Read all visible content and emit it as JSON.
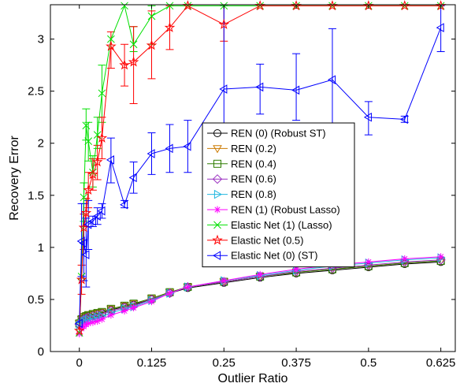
{
  "chart_data": {
    "type": "line",
    "xlabel": "Outlier Ratio",
    "ylabel": "Recovery Error",
    "xlim": [
      -0.05,
      0.65
    ],
    "ylim": [
      0,
      3.33
    ],
    "xticks": [
      0,
      0.125,
      0.25,
      0.375,
      0.5,
      0.625
    ],
    "xtick_labels": [
      "0",
      "0.125",
      "0.25",
      "0.375",
      "0.5",
      "0.625"
    ],
    "yticks": [
      0,
      0.5,
      1,
      1.5,
      2,
      2.5,
      3
    ],
    "ytick_labels": [
      "0",
      "0.5",
      "1",
      "1.5",
      "2",
      "2.5",
      "3"
    ],
    "grid": false,
    "legend_position": "center",
    "x": [
      0,
      0.0039,
      0.0078,
      0.0117,
      0.0156,
      0.0234,
      0.0313,
      0.0391,
      0.0547,
      0.0781,
      0.0938,
      0.125,
      0.1563,
      0.1875,
      0.25,
      0.3125,
      0.375,
      0.4375,
      0.5,
      0.5625,
      0.625
    ],
    "series": [
      {
        "name": "REN (0) (Robust ST)",
        "color": "#000000",
        "marker": "circle",
        "values": [
          0.26,
          0.3,
          0.32,
          0.33,
          0.34,
          0.35,
          0.36,
          0.37,
          0.4,
          0.43,
          0.45,
          0.5,
          0.56,
          0.61,
          0.66,
          0.71,
          0.75,
          0.78,
          0.81,
          0.84,
          0.86
        ]
      },
      {
        "name": "REN (0.2)",
        "color": "#cc7a00",
        "marker": "triangle-down",
        "values": [
          0.27,
          0.31,
          0.33,
          0.34,
          0.35,
          0.36,
          0.37,
          0.38,
          0.41,
          0.44,
          0.46,
          0.51,
          0.57,
          0.62,
          0.67,
          0.72,
          0.76,
          0.79,
          0.82,
          0.85,
          0.87
        ]
      },
      {
        "name": "REN (0.4)",
        "color": "#2e7d00",
        "marker": "square",
        "values": [
          0.27,
          0.31,
          0.33,
          0.34,
          0.35,
          0.36,
          0.37,
          0.38,
          0.41,
          0.44,
          0.46,
          0.51,
          0.57,
          0.62,
          0.67,
          0.72,
          0.76,
          0.79,
          0.82,
          0.85,
          0.87
        ]
      },
      {
        "name": "REN (0.6)",
        "color": "#9a2fc0",
        "marker": "diamond",
        "values": [
          0.26,
          0.29,
          0.31,
          0.32,
          0.33,
          0.34,
          0.35,
          0.36,
          0.39,
          0.42,
          0.44,
          0.5,
          0.56,
          0.62,
          0.67,
          0.72,
          0.77,
          0.8,
          0.83,
          0.86,
          0.88
        ]
      },
      {
        "name": "REN (0.8)",
        "color": "#22b7e0",
        "marker": "triangle-right",
        "values": [
          0.25,
          0.27,
          0.29,
          0.3,
          0.31,
          0.32,
          0.33,
          0.34,
          0.37,
          0.41,
          0.43,
          0.49,
          0.56,
          0.62,
          0.68,
          0.73,
          0.78,
          0.82,
          0.85,
          0.88,
          0.9
        ]
      },
      {
        "name": "REN (1) (Robust Lasso)",
        "color": "#ff00ff",
        "marker": "asterisk",
        "values": [
          0.17,
          0.22,
          0.24,
          0.26,
          0.27,
          0.28,
          0.29,
          0.31,
          0.35,
          0.39,
          0.42,
          0.48,
          0.56,
          0.62,
          0.68,
          0.74,
          0.79,
          0.83,
          0.86,
          0.89,
          0.91
        ]
      },
      {
        "name": "Elastic Net (1) (Lasso)",
        "color": "#00e000",
        "marker": "x",
        "values": [
          0.18,
          0.72,
          1.48,
          2.17,
          2.02,
          1.72,
          2.08,
          2.48,
          3.0,
          3.32,
          2.95,
          3.22,
          3.32,
          3.32,
          3.32,
          3.32,
          3.32,
          3.32,
          3.32,
          3.32,
          3.32
        ]
      },
      {
        "name": "Elastic Net (0.5)",
        "color": "#ff0000",
        "marker": "star",
        "values": [
          0.2,
          0.69,
          1.19,
          1.33,
          1.55,
          1.7,
          1.82,
          2.05,
          2.93,
          2.75,
          2.78,
          2.94,
          3.11,
          3.32,
          3.14,
          3.32,
          3.32,
          3.32,
          3.32,
          3.32,
          3.32
        ]
      },
      {
        "name": "Elastic Net (0) (ST)",
        "color": "#0000ff",
        "marker": "triangle-left",
        "values": [
          0.27,
          1.06,
          1.04,
          0.93,
          1.22,
          1.25,
          1.3,
          1.35,
          1.84,
          1.41,
          1.67,
          1.9,
          1.95,
          1.97,
          2.52,
          2.54,
          2.51,
          2.61,
          2.25,
          2.23,
          3.11
        ]
      }
    ],
    "error_bars": [
      {
        "series": "Elastic Net (1) (Lasso)",
        "x": [
          0.0078,
          0.0117,
          0.0156,
          0.0234,
          0.0313,
          0.0391,
          0.0938,
          0.125
        ],
        "low": [
          1.25,
          2.03,
          1.83,
          1.58,
          1.95,
          2.2,
          2.88,
          2.95
        ],
        "high": [
          1.62,
          2.33,
          2.2,
          1.88,
          2.25,
          2.75,
          3.12,
          3.32
        ]
      },
      {
        "series": "Elastic Net (0.5)",
        "x": [
          0.0039,
          0.0078,
          0.0117,
          0.0156,
          0.0234,
          0.0313,
          0.0391,
          0.0547,
          0.0781,
          0.0938,
          0.125,
          0.1563,
          0.25
        ],
        "low": [
          0.55,
          0.98,
          1.2,
          1.38,
          1.55,
          1.65,
          1.85,
          2.72,
          2.55,
          2.38,
          2.62,
          2.9,
          2.98
        ],
        "high": [
          0.83,
          1.32,
          1.47,
          1.72,
          1.85,
          1.98,
          2.25,
          3.07,
          2.95,
          3.12,
          3.27,
          3.32,
          3.32
        ]
      },
      {
        "series": "Elastic Net (0) (ST)",
        "x": [
          0.0039,
          0.0078,
          0.0117,
          0.0156,
          0.0234,
          0.0313,
          0.0391,
          0.0547,
          0.0781,
          0.0938,
          0.125,
          0.1563,
          0.1875,
          0.25,
          0.3125,
          0.375,
          0.4375,
          0.5,
          0.5625,
          0.625
        ],
        "low": [
          0.72,
          0.68,
          0.62,
          0.98,
          1.2,
          1.22,
          1.28,
          1.62,
          1.38,
          1.52,
          1.7,
          1.72,
          1.72,
          1.8,
          2.28,
          2.22,
          2.1,
          2.08,
          2.2,
          2.88
        ],
        "high": [
          1.42,
          1.42,
          1.28,
          1.45,
          1.3,
          1.38,
          1.42,
          2.05,
          1.45,
          1.82,
          2.1,
          2.18,
          2.22,
          3.32,
          2.76,
          2.86,
          3.1,
          2.4,
          2.26,
          3.32
        ]
      }
    ]
  }
}
